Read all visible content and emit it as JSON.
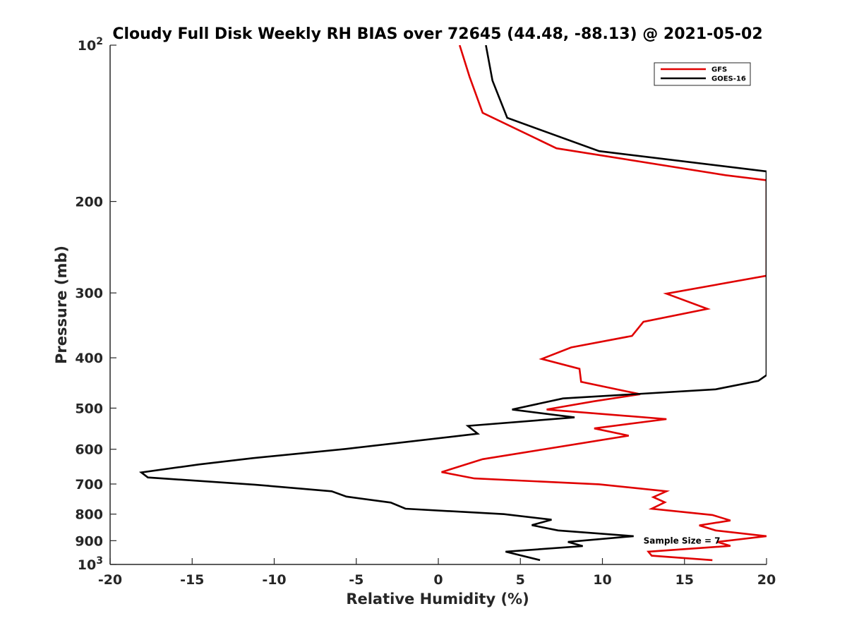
{
  "chart_data": {
    "type": "line",
    "title": "Cloudy Full Disk Weekly RH BIAS over 72645 (44.48, -88.13) @ 2021-05-02",
    "xlabel": "Relative Humidity (%)",
    "ylabel": "Pressure (mb)",
    "xlim": [
      -20,
      20
    ],
    "ylim": [
      100,
      1000
    ],
    "y_scale": "log",
    "y_reversed": true,
    "grid": false,
    "legend_position": "top-right",
    "x_ticks": [
      -20,
      -15,
      -10,
      -5,
      0,
      5,
      10,
      15,
      20
    ],
    "x_tick_labels": [
      "-20",
      "-15",
      "-10",
      "-5",
      "0",
      "5",
      "10",
      "15",
      "20"
    ],
    "y_ticks": [
      100,
      200,
      300,
      400,
      500,
      600,
      700,
      800,
      900,
      1000
    ],
    "y_tick_labels": [
      {
        "base": "10",
        "exp": "2"
      },
      {
        "base": "200",
        "exp": ""
      },
      {
        "base": "300",
        "exp": ""
      },
      {
        "base": "400",
        "exp": ""
      },
      {
        "base": "500",
        "exp": ""
      },
      {
        "base": "600",
        "exp": ""
      },
      {
        "base": "700",
        "exp": ""
      },
      {
        "base": "800",
        "exp": ""
      },
      {
        "base": "900",
        "exp": ""
      },
      {
        "base": "10",
        "exp": "3"
      }
    ],
    "series": [
      {
        "name": "GFS",
        "color": "#e00000",
        "points": [
          {
            "x": 1.3,
            "p": 100
          },
          {
            "x": 1.9,
            "p": 115
          },
          {
            "x": 2.7,
            "p": 135
          },
          {
            "x": 7.2,
            "p": 158
          },
          {
            "x": 17.5,
            "p": 178
          },
          {
            "x": 20.0,
            "p": 182
          },
          {
            "x": 20.0,
            "p": 278
          },
          {
            "x": 13.9,
            "p": 301
          },
          {
            "x": 16.4,
            "p": 322
          },
          {
            "x": 12.5,
            "p": 341
          },
          {
            "x": 11.8,
            "p": 363
          },
          {
            "x": 8.1,
            "p": 382
          },
          {
            "x": 6.3,
            "p": 402
          },
          {
            "x": 8.6,
            "p": 420
          },
          {
            "x": 8.7,
            "p": 445
          },
          {
            "x": 12.3,
            "p": 470
          },
          {
            "x": 9.5,
            "p": 485
          },
          {
            "x": 6.6,
            "p": 503
          },
          {
            "x": 13.9,
            "p": 525
          },
          {
            "x": 9.5,
            "p": 547
          },
          {
            "x": 11.6,
            "p": 565
          },
          {
            "x": 2.7,
            "p": 627
          },
          {
            "x": 0.2,
            "p": 664
          },
          {
            "x": 2.2,
            "p": 683
          },
          {
            "x": 9.8,
            "p": 701
          },
          {
            "x": 13.9,
            "p": 723
          },
          {
            "x": 13.1,
            "p": 742
          },
          {
            "x": 13.8,
            "p": 759
          },
          {
            "x": 13.0,
            "p": 781
          },
          {
            "x": 16.7,
            "p": 803
          },
          {
            "x": 17.8,
            "p": 823
          },
          {
            "x": 15.9,
            "p": 841
          },
          {
            "x": 16.9,
            "p": 860
          },
          {
            "x": 20.0,
            "p": 882
          },
          {
            "x": 17.0,
            "p": 905
          },
          {
            "x": 17.8,
            "p": 921
          },
          {
            "x": 12.8,
            "p": 945
          },
          {
            "x": 13.0,
            "p": 962
          },
          {
            "x": 16.7,
            "p": 981
          }
        ]
      },
      {
        "name": "GOES-16",
        "color": "#000000",
        "points": [
          {
            "x": 2.9,
            "p": 100
          },
          {
            "x": 3.3,
            "p": 117
          },
          {
            "x": 4.2,
            "p": 138
          },
          {
            "x": 9.8,
            "p": 160
          },
          {
            "x": 20.0,
            "p": 175
          },
          {
            "x": 20.0,
            "p": 432
          },
          {
            "x": 19.5,
            "p": 443
          },
          {
            "x": 16.9,
            "p": 460
          },
          {
            "x": 7.6,
            "p": 479
          },
          {
            "x": 4.5,
            "p": 503
          },
          {
            "x": 8.3,
            "p": 521
          },
          {
            "x": 1.8,
            "p": 541
          },
          {
            "x": 2.4,
            "p": 560
          },
          {
            "x": -5.6,
            "p": 599
          },
          {
            "x": -11.3,
            "p": 624
          },
          {
            "x": -14.6,
            "p": 642
          },
          {
            "x": -18.1,
            "p": 665
          },
          {
            "x": -17.7,
            "p": 680
          },
          {
            "x": -11.2,
            "p": 702
          },
          {
            "x": -6.5,
            "p": 723
          },
          {
            "x": -5.6,
            "p": 740
          },
          {
            "x": -2.9,
            "p": 760
          },
          {
            "x": -2.0,
            "p": 781
          },
          {
            "x": 4.0,
            "p": 800
          },
          {
            "x": 6.9,
            "p": 820
          },
          {
            "x": 5.7,
            "p": 840
          },
          {
            "x": 7.3,
            "p": 860
          },
          {
            "x": 11.9,
            "p": 882
          },
          {
            "x": 7.9,
            "p": 905
          },
          {
            "x": 8.8,
            "p": 922
          },
          {
            "x": 4.1,
            "p": 945
          },
          {
            "x": 6.2,
            "p": 981
          }
        ]
      }
    ],
    "annotations": [
      {
        "text": "Sample Size = 7",
        "x": 12.5,
        "p": 900
      }
    ]
  }
}
